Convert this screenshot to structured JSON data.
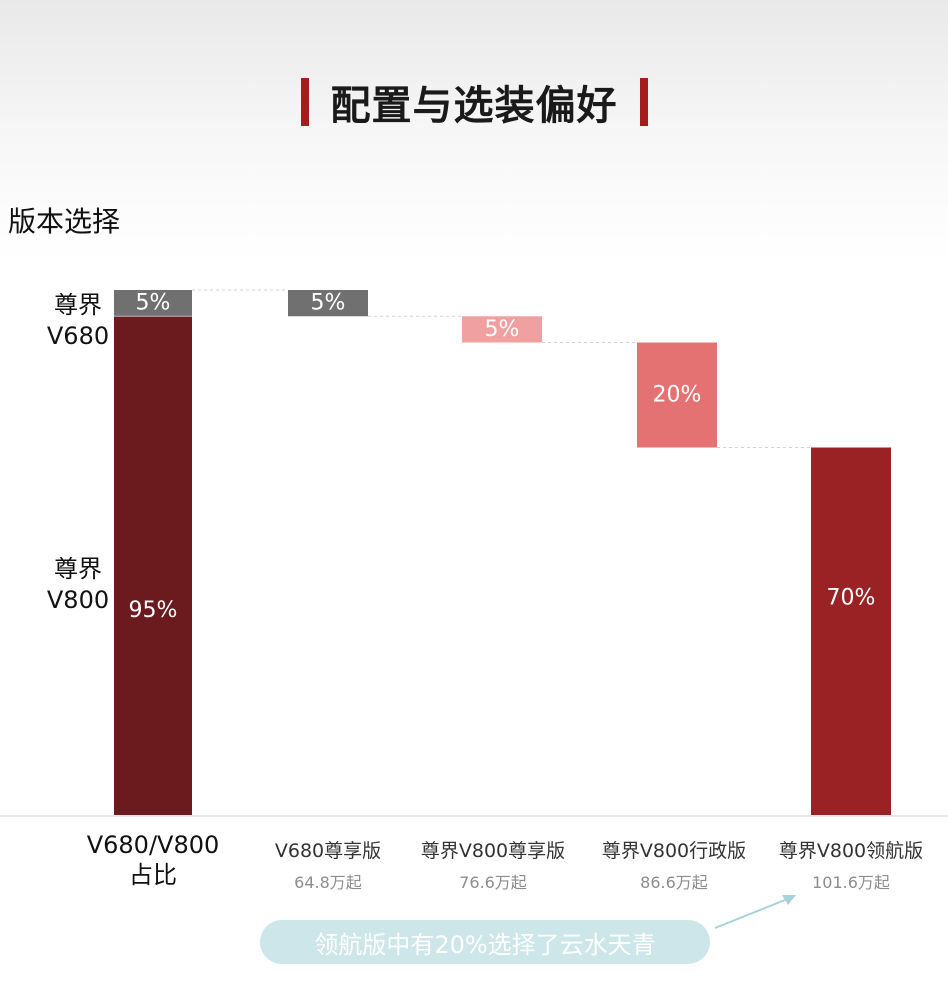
{
  "page": {
    "title": "配置与选装偏好",
    "section_label": "版本选择"
  },
  "colors": {
    "title_bar": "#a61c1c",
    "grey": "#707070",
    "pink_light": "#f0a0a0",
    "pink": "#e57272",
    "red": "#9a2224",
    "dark_red": "#6b1a1d",
    "note_bg": "#cce6ea",
    "connector": "#d0d0d0"
  },
  "chart_data": {
    "type": "waterfall",
    "title": "版本选择",
    "ylim": [
      0,
      100
    ],
    "share_bar": {
      "category": "V680/V800\n占比",
      "segments": [
        {
          "name": "尊界\nV680",
          "value": 5,
          "label": "5%",
          "color": "#707070"
        },
        {
          "name": "尊界\nV800",
          "value": 95,
          "label": "95%",
          "color": "#6b1a1d"
        }
      ]
    },
    "steps": [
      {
        "category": "V680尊享版",
        "price": "64.8万起",
        "value": 5,
        "label": "5%",
        "color": "#707070"
      },
      {
        "category": "尊界V800尊享版",
        "price": "76.6万起",
        "value": 5,
        "label": "5%",
        "color": "#f0a0a0"
      },
      {
        "category": "尊界V800行政版",
        "price": "86.6万起",
        "value": 20,
        "label": "20%",
        "color": "#e57272"
      },
      {
        "category": "尊界V800领航版",
        "price": "101.6万起",
        "value": 70,
        "label": "70%",
        "color": "#9a2224"
      }
    ],
    "annotation": "领航版中有20%选择了云水天青"
  },
  "labels": {
    "y_top": [
      "尊界",
      "V680"
    ],
    "y_bottom": [
      "尊界",
      "V800"
    ],
    "first_category": [
      "V680/V800",
      "占比"
    ]
  }
}
